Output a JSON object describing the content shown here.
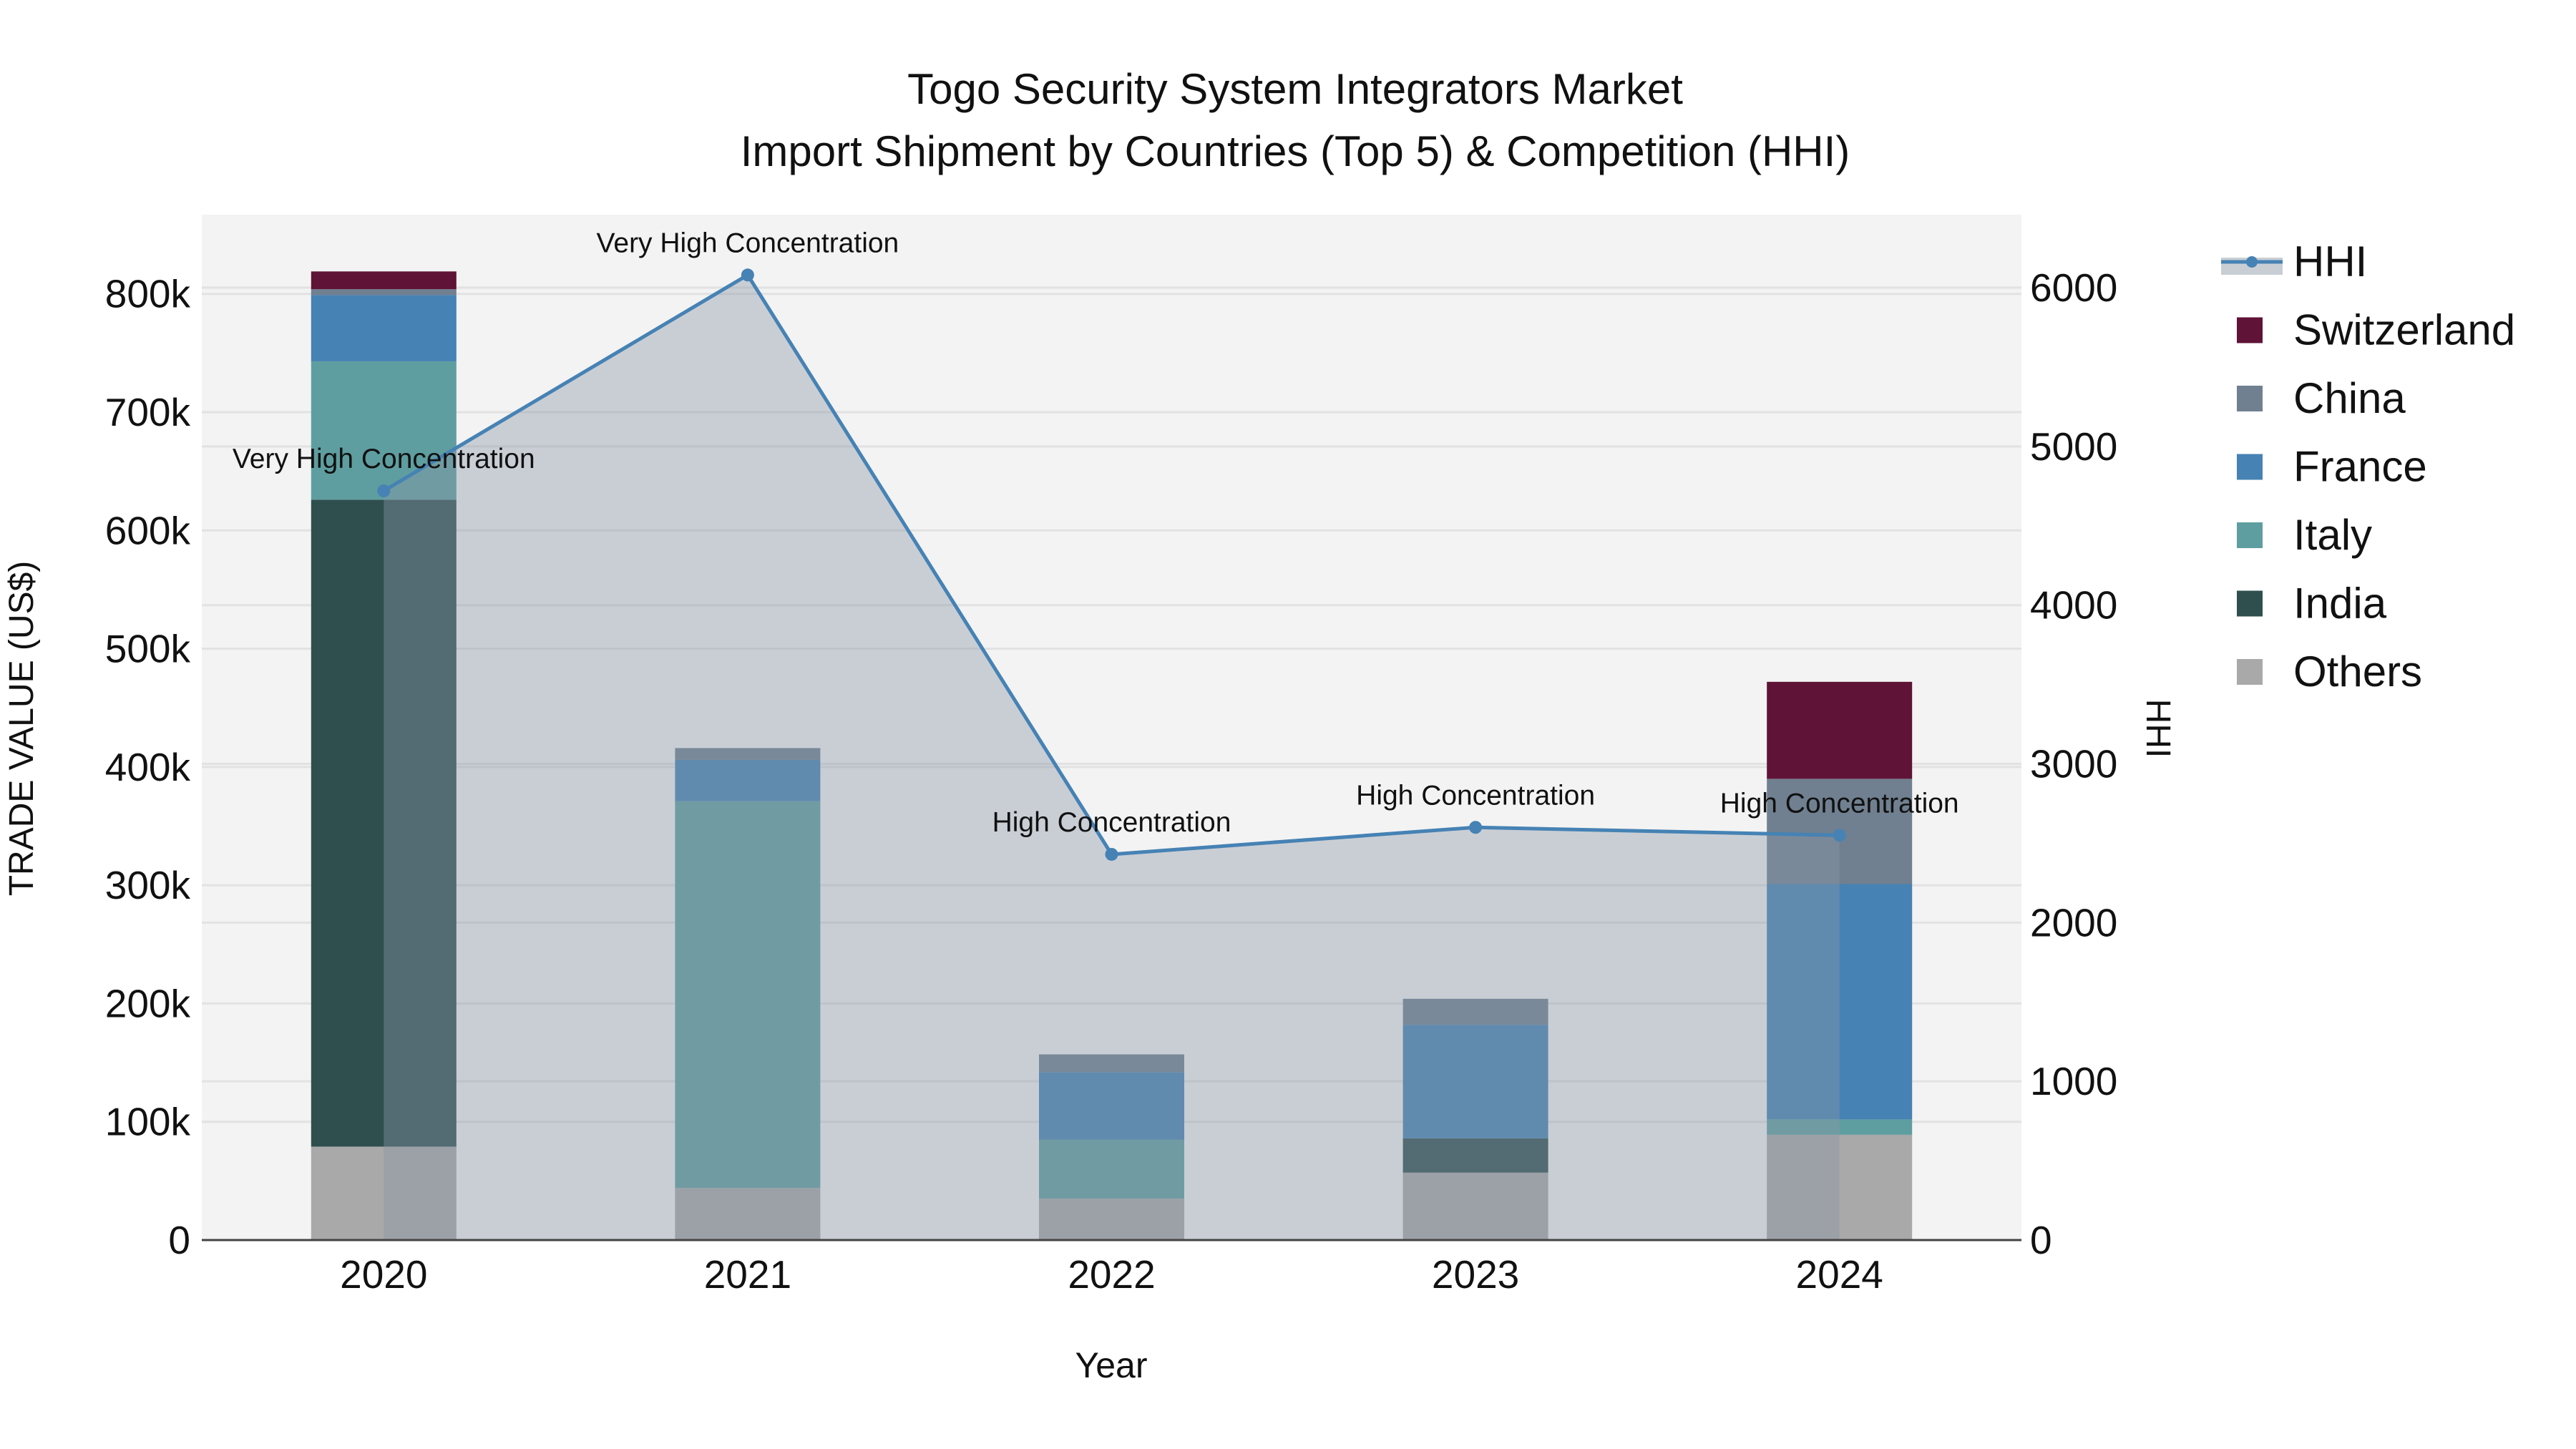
{
  "chart_data": {
    "type": "bar",
    "title": "Togo Security System Integrators Market",
    "subtitle": "Import Shipment by Countries (Top 5) & Competition (HHI)",
    "xlabel": "Year",
    "ylabel": "TRADE VALUE (US$)",
    "y2label": "HHI",
    "categories": [
      "2020",
      "2021",
      "2022",
      "2023",
      "2024"
    ],
    "ylim": [
      0,
      867000
    ],
    "y2lim": [
      0,
      6460
    ],
    "yticks": [
      0,
      100000,
      200000,
      300000,
      400000,
      500000,
      600000,
      700000,
      800000
    ],
    "ytick_labels": [
      "0",
      "100k",
      "200k",
      "300k",
      "400k",
      "500k",
      "600k",
      "700k",
      "800k"
    ],
    "y2ticks": [
      0,
      1000,
      2000,
      3000,
      4000,
      5000,
      6000
    ],
    "y2tick_labels": [
      "0",
      "1000",
      "2000",
      "3000",
      "4000",
      "5000",
      "6000"
    ],
    "grid": true,
    "legend_position": "right",
    "stack_order": [
      "Others",
      "India",
      "Italy",
      "France",
      "China",
      "Switzerland"
    ],
    "series": [
      {
        "name": "Others",
        "color": "#a9a9a9",
        "values": [
          79000,
          44000,
          35000,
          57000,
          89000
        ]
      },
      {
        "name": "India",
        "color": "#2f4f4f",
        "values": [
          547000,
          0,
          0,
          29000,
          0
        ]
      },
      {
        "name": "Italy",
        "color": "#5f9ea0",
        "values": [
          117000,
          327000,
          50000,
          0,
          13000
        ]
      },
      {
        "name": "France",
        "color": "#4682b4",
        "values": [
          56000,
          35000,
          57000,
          96000,
          199000
        ]
      },
      {
        "name": "China",
        "color": "#708090",
        "values": [
          5000,
          10000,
          15000,
          22000,
          89000
        ]
      },
      {
        "name": "Switzerland",
        "color": "#5f1336",
        "values": [
          15000,
          0,
          0,
          0,
          82000
        ]
      }
    ],
    "hhi": {
      "name": "HHI",
      "color": "#4682b4",
      "values": [
        4720,
        6080,
        2430,
        2600,
        2550
      ],
      "annotations": [
        "Very High Concentration",
        "Very High Concentration",
        "High Concentration",
        "High Concentration",
        "High Concentration"
      ]
    },
    "legend": [
      "HHI",
      "Switzerland",
      "China",
      "France",
      "Italy",
      "India",
      "Others"
    ]
  }
}
